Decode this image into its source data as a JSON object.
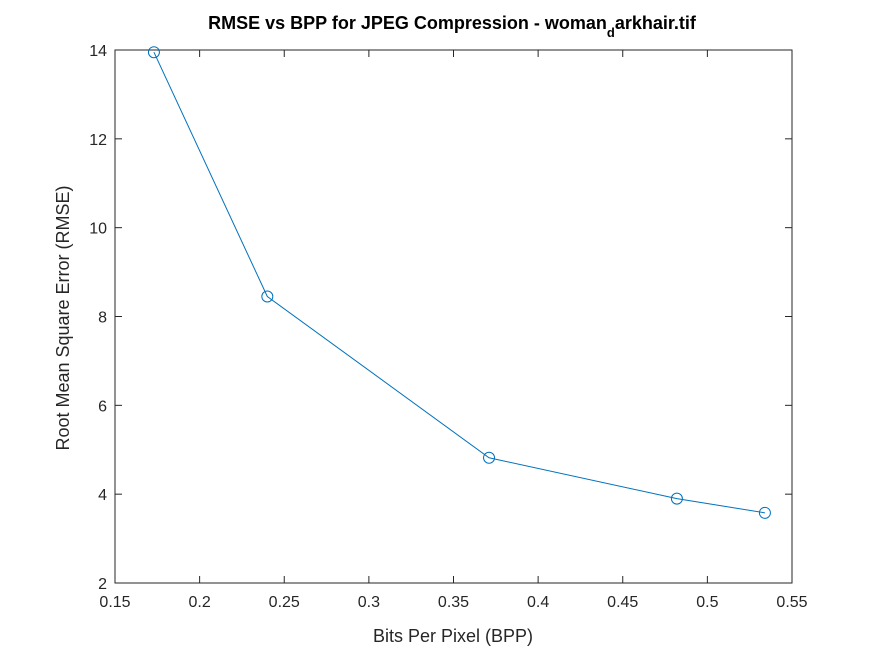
{
  "chart_data": {
    "type": "line",
    "title": {
      "main": "RMSE vs BPP for JPEG Compression - woman",
      "subscript": "d",
      "suffix": "arkhair.tif"
    },
    "xlabel": "Bits Per Pixel (BPP)",
    "ylabel": "Root Mean Square Error (RMSE)",
    "xlim": [
      0.15,
      0.55
    ],
    "ylim": [
      2,
      14
    ],
    "x_ticks": [
      "0.15",
      "0.2",
      "0.25",
      "0.3",
      "0.35",
      "0.4",
      "0.45",
      "0.5",
      "0.55"
    ],
    "y_ticks": [
      "2",
      "4",
      "6",
      "8",
      "10",
      "12",
      "14"
    ],
    "grid": false,
    "marker": "circle",
    "color": "#0072BD",
    "series": [
      {
        "x": [
          0.173,
          0.24,
          0.371,
          0.482,
          0.534
        ],
        "y": [
          13.95,
          8.45,
          4.82,
          3.9,
          3.58
        ]
      }
    ]
  }
}
